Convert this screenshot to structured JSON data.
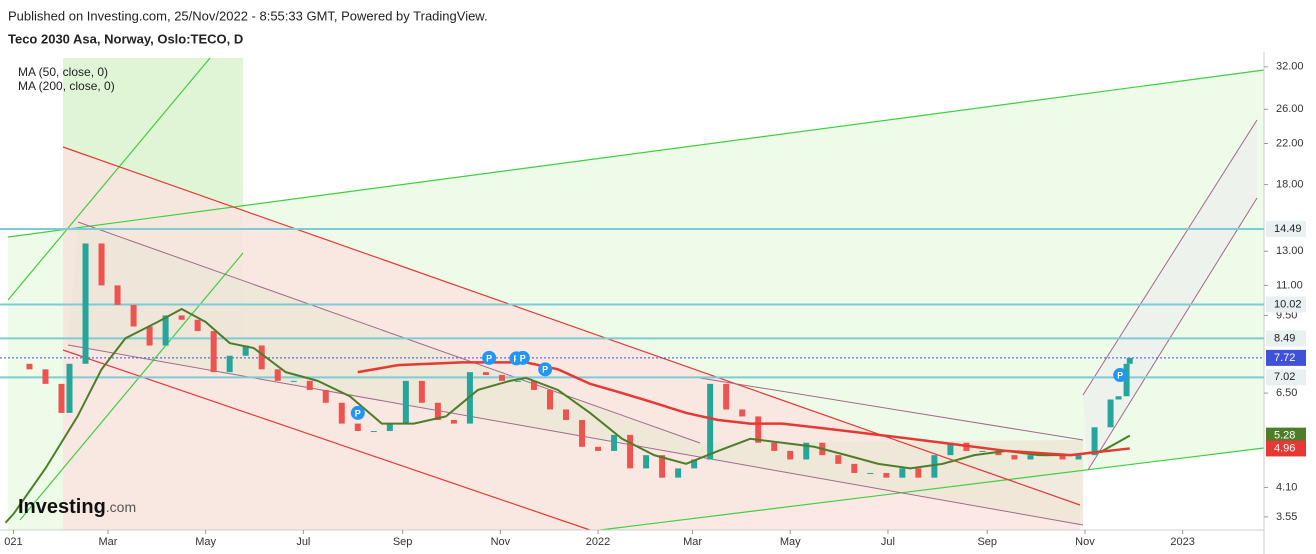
{
  "header": {
    "published": "Published on Investing.com, 25/Nov/2022 - 8:55:33 GMT, Powered by TradingView.",
    "symbol": "Teco 2030 Asa, Norway, Oslo:TECO, D"
  },
  "logo": {
    "brand": "Investing",
    "suffix": ".com"
  },
  "chart_data": {
    "type": "line",
    "log_scale": true,
    "xlim": [
      -8.4,
      780.8
    ],
    "ylim": [
      3.33,
      34.4
    ],
    "xticks": [
      {
        "value": 0,
        "label": "021"
      },
      {
        "value": 59,
        "label": "Mar"
      },
      {
        "value": 120,
        "label": "May"
      },
      {
        "value": 181,
        "label": "Jul"
      },
      {
        "value": 243,
        "label": "Sep"
      },
      {
        "value": 304,
        "label": "Nov"
      },
      {
        "value": 365,
        "label": "2022"
      },
      {
        "value": 424,
        "label": "Mar"
      },
      {
        "value": 485,
        "label": "May"
      },
      {
        "value": 546,
        "label": "Jul"
      },
      {
        "value": 608,
        "label": "Sep"
      },
      {
        "value": 669,
        "label": "Nov"
      },
      {
        "value": 730,
        "label": "2023"
      }
    ],
    "yticks": [
      {
        "value": 32,
        "label": "32.00"
      },
      {
        "value": 26,
        "label": "26.00"
      },
      {
        "value": 22,
        "label": "22.00"
      },
      {
        "value": 18,
        "label": "18.00"
      },
      {
        "value": 13,
        "label": "13.00"
      },
      {
        "value": 11,
        "label": "11.00"
      },
      {
        "value": 9.5,
        "label": "9.50"
      },
      {
        "value": 6.5,
        "label": "6.50"
      },
      {
        "value": 4.1,
        "label": "4.10"
      },
      {
        "value": 3.55,
        "label": "3.55"
      }
    ],
    "levels": [
      14.49,
      10.02,
      8.49,
      7.02
    ],
    "series": [
      {
        "up_color": "#26a69a",
        "down_color": "#ef5350",
        "label_color": "#3f51d9",
        "x": [
          0,
          10,
          20,
          30,
          35,
          45,
          55,
          65,
          75,
          85,
          95,
          105,
          115,
          125,
          135,
          145,
          155,
          165,
          175,
          185,
          195,
          205,
          215,
          225,
          235,
          245,
          255,
          265,
          275,
          285,
          295,
          305,
          315,
          325,
          335,
          345,
          355,
          365,
          375,
          385,
          395,
          405,
          415,
          425,
          435,
          445,
          455,
          465,
          475,
          485,
          495,
          505,
          515,
          525,
          535,
          545,
          555,
          565,
          575,
          585,
          595,
          605,
          615,
          625,
          635,
          645,
          655,
          665,
          675,
          685,
          690,
          695,
          697
        ],
        "values": [
          7.5,
          7.3,
          6.8,
          5.9,
          7.5,
          13.5,
          11,
          10,
          9,
          8.2,
          9.5,
          9.3,
          8.8,
          7.2,
          7.8,
          8.2,
          7.3,
          6.9,
          6.9,
          6.6,
          6.2,
          5.6,
          5.4,
          5.4,
          5.6,
          6.9,
          6.2,
          5.7,
          5.6,
          7.2,
          7.1,
          6.9,
          6.9,
          6.6,
          6.0,
          5.7,
          5.0,
          4.9,
          5.3,
          4.5,
          4.8,
          4.3,
          4.5,
          4.7,
          6.8,
          6.0,
          5.8,
          5.1,
          4.9,
          4.7,
          5.1,
          4.8,
          4.6,
          4.4,
          4.4,
          4.3,
          4.5,
          4.3,
          4.8,
          5.1,
          4.9,
          4.9,
          4.8,
          4.7,
          4.8,
          4.8,
          4.7,
          4.8,
          5.5,
          6.3,
          6.4,
          7.5,
          7.72
        ]
      },
      {
        "name": "MA (50, close, 0)",
        "color": "#4e7d2a",
        "x": [
          -5,
          0,
          20,
          40,
          55,
          70,
          90,
          105,
          120,
          135,
          150,
          170,
          190,
          210,
          230,
          250,
          270,
          290,
          310,
          320,
          340,
          360,
          380,
          400,
          420,
          440,
          460,
          480,
          500,
          520,
          540,
          560,
          580,
          600,
          620,
          640,
          660,
          680,
          697
        ],
        "values": [
          3.45,
          3.6,
          4.5,
          5.8,
          7.3,
          8.5,
          9.2,
          9.8,
          9.2,
          8.3,
          8.1,
          7.2,
          6.9,
          6.4,
          5.6,
          5.6,
          5.8,
          6.6,
          6.9,
          7.0,
          6.6,
          5.9,
          5.2,
          4.8,
          4.6,
          4.9,
          5.2,
          5.1,
          5.0,
          4.8,
          4.6,
          4.5,
          4.6,
          4.8,
          4.9,
          4.8,
          4.8,
          4.9,
          5.28
        ]
      },
      {
        "name": "MA (200, close, 0)",
        "color": "#e53935",
        "x": [
          215,
          240,
          280,
          320,
          340,
          360,
          380,
          400,
          420,
          440,
          460,
          480,
          500,
          520,
          540,
          560,
          580,
          620,
          660,
          697
        ],
        "values": [
          7.2,
          7.45,
          7.55,
          7.55,
          7.3,
          6.8,
          6.5,
          6.2,
          5.9,
          5.7,
          5.6,
          5.6,
          5.5,
          5.4,
          5.3,
          5.2,
          5.1,
          4.9,
          4.8,
          4.96
        ]
      }
    ],
    "events": {
      "label": "P",
      "x": [
        215,
        297,
        314,
        318,
        332,
        691
      ],
      "values": [
        5.9,
        7.72,
        7.7,
        7.72,
        7.3,
        7.1
      ]
    }
  }
}
